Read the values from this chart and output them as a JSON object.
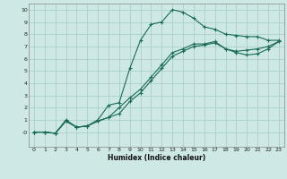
{
  "title": "",
  "xlabel": "Humidex (Indice chaleur)",
  "ylabel": "",
  "background_color": "#cde8e5",
  "grid_color": "#aacfcc",
  "line_color": "#1a6b5a",
  "marker": "+",
  "xlim": [
    -0.5,
    23.5
  ],
  "ylim": [
    -1.2,
    10.5
  ],
  "xticks": [
    0,
    1,
    2,
    3,
    4,
    5,
    6,
    7,
    8,
    9,
    10,
    11,
    12,
    13,
    14,
    15,
    16,
    17,
    18,
    19,
    20,
    21,
    22,
    23
  ],
  "yticks": [
    0,
    1,
    2,
    3,
    4,
    5,
    6,
    7,
    8,
    9,
    10
  ],
  "ytick_labels": [
    "-0",
    "1",
    "2",
    "3",
    "4",
    "5",
    "6",
    "7",
    "8",
    "9",
    "10"
  ],
  "curve1_x": [
    0,
    1,
    2,
    3,
    4,
    5,
    6,
    7,
    8,
    9,
    10,
    11,
    12,
    13,
    14,
    15,
    16,
    17,
    18,
    19,
    20,
    21,
    22,
    23
  ],
  "curve1_y": [
    0.0,
    0.0,
    -0.1,
    1.0,
    0.4,
    0.5,
    1.0,
    2.2,
    2.4,
    5.2,
    7.5,
    8.8,
    9.0,
    10.0,
    9.8,
    9.3,
    8.6,
    8.4,
    8.0,
    7.9,
    7.8,
    7.8,
    7.5,
    7.5
  ],
  "curve2_x": [
    0,
    1,
    2,
    3,
    4,
    5,
    6,
    7,
    8,
    9,
    10,
    11,
    12,
    13,
    14,
    15,
    16,
    17,
    18,
    19,
    20,
    21,
    22,
    23
  ],
  "curve2_y": [
    0.0,
    0.0,
    -0.1,
    0.9,
    0.4,
    0.5,
    0.9,
    1.2,
    1.5,
    2.5,
    3.2,
    4.2,
    5.2,
    6.2,
    6.6,
    7.0,
    7.1,
    7.3,
    6.8,
    6.6,
    6.7,
    6.8,
    7.0,
    7.4
  ],
  "curve3_x": [
    0,
    1,
    2,
    3,
    4,
    5,
    6,
    7,
    8,
    9,
    10,
    11,
    12,
    13,
    14,
    15,
    16,
    17,
    18,
    19,
    20,
    21,
    22,
    23
  ],
  "curve3_y": [
    0.0,
    0.0,
    -0.1,
    0.9,
    0.4,
    0.5,
    0.9,
    1.2,
    2.0,
    2.8,
    3.5,
    4.5,
    5.5,
    6.5,
    6.8,
    7.2,
    7.2,
    7.4,
    6.8,
    6.5,
    6.3,
    6.4,
    6.8,
    7.4
  ]
}
